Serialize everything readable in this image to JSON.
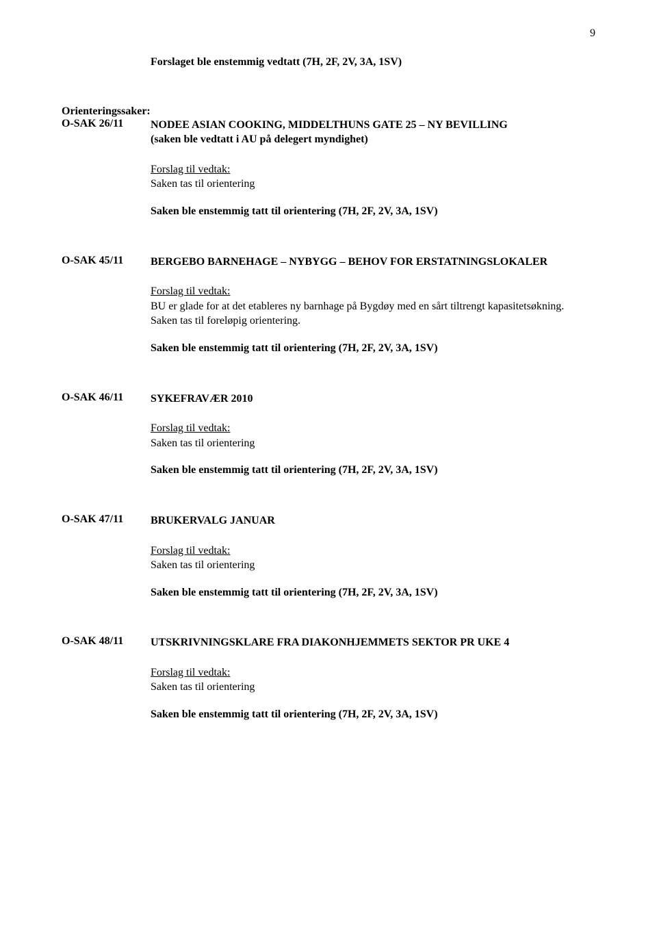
{
  "page_number": "9",
  "intro_line": "Forslaget ble enstemmig vedtatt (7H, 2F, 2V, 3A, 1SV)",
  "orienteringssaker_heading": "Orienteringssaker:",
  "forslag_label": "Forslag til vedtak:",
  "orientering_text": "Saken tas til orientering",
  "tatt_text": "Saken ble enstemmig tatt til orientering (7H, 2F, 2V, 3A, 1SV)",
  "sak26": {
    "label": "O-SAK  26/11",
    "title": "NODEE ASIAN COOKING, MIDDELTHUNS GATE 25 – NY BEVILLING",
    "subtitle": "(saken ble vedtatt i AU på delegert myndighet)"
  },
  "sak45": {
    "label": "O-SAK  45/11",
    "title": "BERGEBO BARNEHAGE – NYBYGG – BEHOV FOR ERSTATNINGSLOKALER",
    "body_line1": "BU er glade for at det etableres ny barnhage på Bygdøy med en sårt tiltrengt kapasitetsøkning.",
    "body_line2": "Saken tas til foreløpig orientering."
  },
  "sak46": {
    "label": "O-SAK  46/11",
    "title": "SYKEFRAVÆR 2010"
  },
  "sak47": {
    "label": "O-SAK  47/11",
    "title": "BRUKERVALG JANUAR"
  },
  "sak48": {
    "label": "O-SAK  48/11",
    "title": "UTSKRIVNINGSKLARE FRA DIAKONHJEMMETS SEKTOR PR UKE 4"
  }
}
